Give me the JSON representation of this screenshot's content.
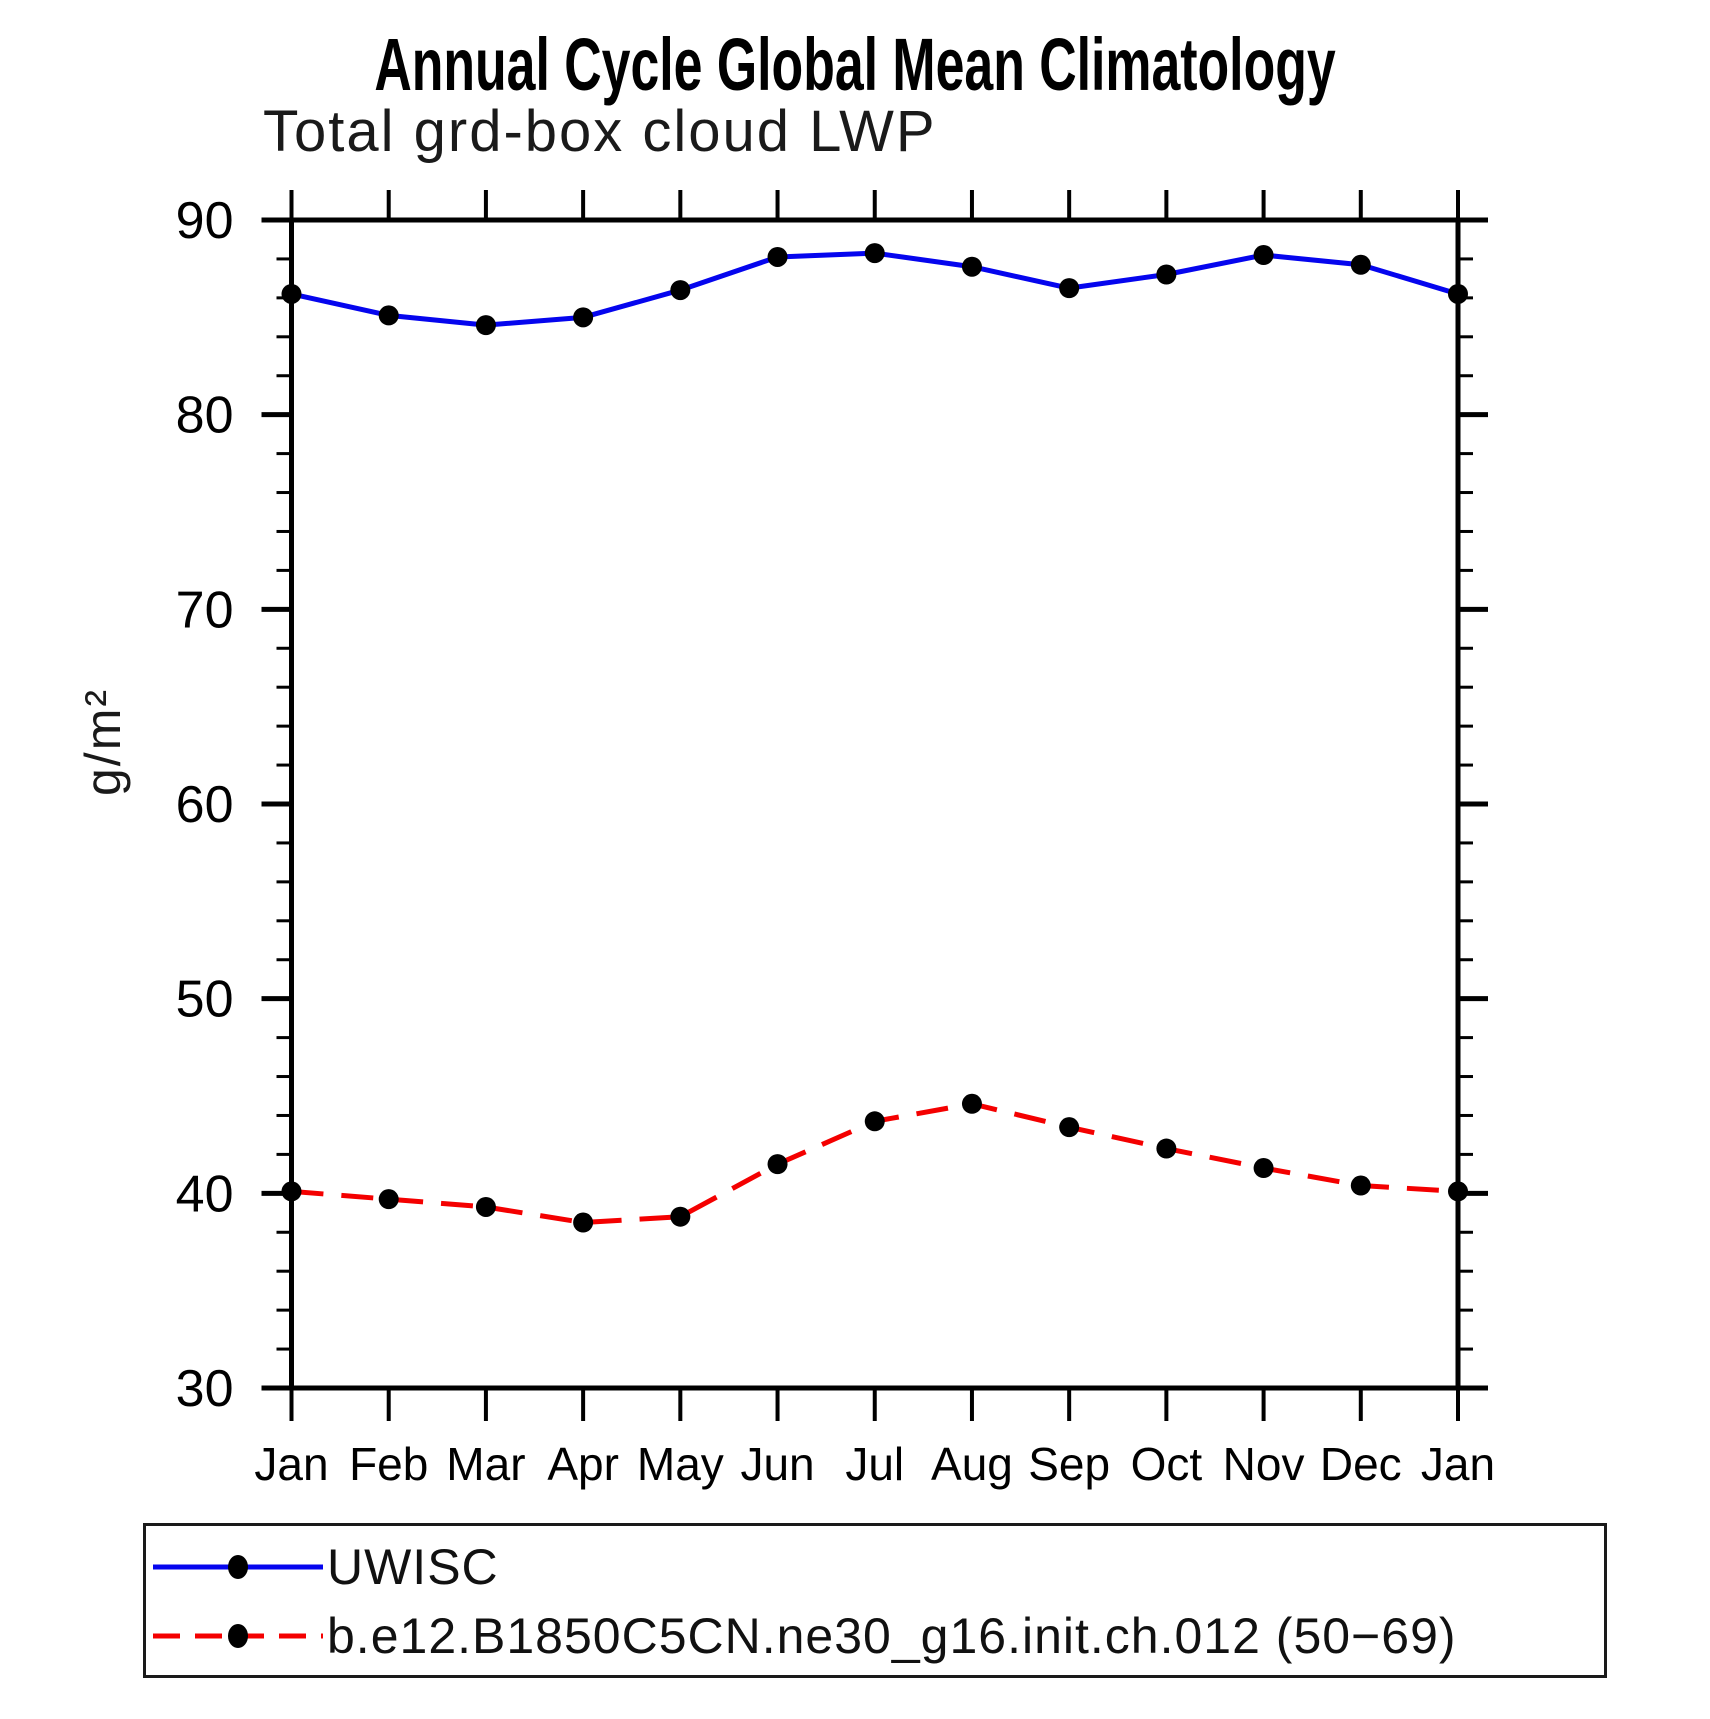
{
  "chart_data": {
    "type": "line",
    "title": "Annual Cycle Global Mean Climatology",
    "subtitle": "Total grd-box cloud LWP",
    "ylabel": "g/m²",
    "xlabel": "",
    "categories": [
      "Jan",
      "Feb",
      "Mar",
      "Apr",
      "May",
      "Jun",
      "Jul",
      "Aug",
      "Sep",
      "Oct",
      "Nov",
      "Dec",
      "Jan"
    ],
    "ylim": [
      30,
      90
    ],
    "y_major_step": 10,
    "y_minor_step": 2,
    "grid": "off",
    "legend_position": "bottom-left-box",
    "axis_color": "#000000",
    "series": [
      {
        "name": "UWISC",
        "color": "#0505ee",
        "style": "solid",
        "marker": "filled-circle",
        "marker_color": "#000000",
        "values": [
          86.2,
          85.1,
          84.6,
          85.0,
          86.4,
          88.1,
          88.3,
          87.6,
          86.5,
          87.2,
          88.2,
          87.7,
          86.2
        ]
      },
      {
        "name": "b.e12.B1850C5CN.ne30_g16.init.ch.012 (50−69)",
        "color": "#f40000",
        "style": "dashed",
        "marker": "filled-circle",
        "marker_color": "#000000",
        "values": [
          40.1,
          39.7,
          39.3,
          38.5,
          38.8,
          41.5,
          43.7,
          44.6,
          43.4,
          42.3,
          41.3,
          40.4,
          40.1
        ]
      }
    ]
  }
}
